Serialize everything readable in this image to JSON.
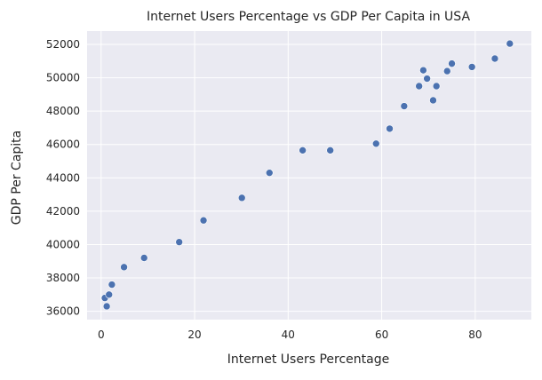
{
  "chart_data": {
    "type": "scatter",
    "title": "Internet Users Percentage vs GDP Per Capita in USA",
    "xlabel": "Internet Users Percentage",
    "ylabel": "GDP Per Capita",
    "xlim": [
      -3,
      92
    ],
    "ylim": [
      35500,
      52800
    ],
    "xticks": [
      0,
      20,
      40,
      60,
      80
    ],
    "yticks": [
      36000,
      38000,
      40000,
      42000,
      44000,
      46000,
      48000,
      50000,
      52000
    ],
    "grid": true,
    "legend": "none",
    "style": {
      "plot_background": "#eaeaf2",
      "grid_color": "#ffffff",
      "marker_color": "#4c72b0",
      "text_color": "#262626"
    },
    "points": [
      {
        "x": 0.8,
        "y": 36800
      },
      {
        "x": 1.2,
        "y": 36300
      },
      {
        "x": 1.7,
        "y": 37000
      },
      {
        "x": 2.3,
        "y": 37600
      },
      {
        "x": 4.9,
        "y": 38650
      },
      {
        "x": 9.2,
        "y": 39200
      },
      {
        "x": 16.7,
        "y": 40150
      },
      {
        "x": 21.9,
        "y": 41450
      },
      {
        "x": 30.1,
        "y": 42800
      },
      {
        "x": 36.0,
        "y": 44300
      },
      {
        "x": 43.1,
        "y": 45650
      },
      {
        "x": 49.0,
        "y": 45650
      },
      {
        "x": 58.8,
        "y": 46050
      },
      {
        "x": 61.7,
        "y": 46950
      },
      {
        "x": 64.8,
        "y": 48300
      },
      {
        "x": 68.0,
        "y": 49500
      },
      {
        "x": 68.9,
        "y": 50450
      },
      {
        "x": 69.7,
        "y": 49950
      },
      {
        "x": 71.0,
        "y": 48650
      },
      {
        "x": 71.7,
        "y": 49500
      },
      {
        "x": 74.0,
        "y": 50400
      },
      {
        "x": 75.0,
        "y": 50850
      },
      {
        "x": 79.3,
        "y": 50650
      },
      {
        "x": 84.2,
        "y": 51150
      },
      {
        "x": 87.4,
        "y": 52050
      }
    ]
  }
}
